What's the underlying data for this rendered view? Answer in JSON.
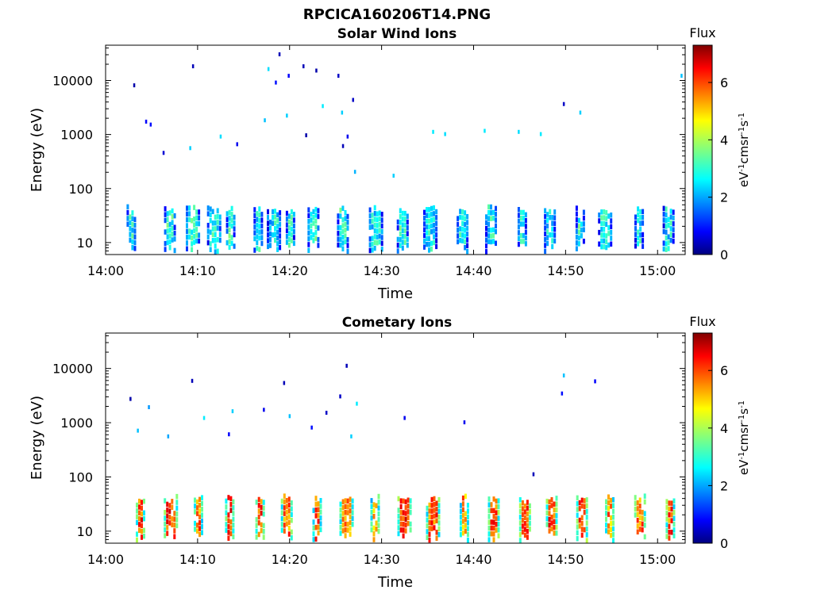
{
  "title": "RPCICA160206T14.PNG",
  "colormap": [
    "#000080",
    "#0000ff",
    "#0080ff",
    "#00ffff",
    "#80ff80",
    "#ffff00",
    "#ff8000",
    "#ff0000",
    "#800000"
  ],
  "chart_data": [
    {
      "type": "heatmap",
      "title": "Solar Wind Ions",
      "xlabel": "Time",
      "ylabel": "Energy (eV)",
      "y_scale": "log",
      "xlim": [
        "14:00",
        "15:03"
      ],
      "ylim": [
        6,
        45000
      ],
      "x_ticks": [
        "14:00",
        "14:10",
        "14:20",
        "14:30",
        "14:40",
        "14:50",
        "15:00"
      ],
      "y_ticks": [
        "10",
        "100",
        "1000",
        "10000"
      ],
      "colorbar": {
        "label": "Flux",
        "unit": "eV-1cm-2sr-1s-1",
        "range": [
          0,
          7.3
        ],
        "ticks": [
          "0",
          "2",
          "4",
          "6"
        ]
      },
      "clusters": [
        {
          "t": 2.8,
          "level": 2.8
        },
        {
          "t": 7.0,
          "level": 2.9
        },
        {
          "t": 9.5,
          "level": 2.9
        },
        {
          "t": 11.8,
          "level": 2.8
        },
        {
          "t": 13.6,
          "level": 3.0
        },
        {
          "t": 16.6,
          "level": 2.8
        },
        {
          "t": 18.3,
          "level": 2.6
        },
        {
          "t": 20.1,
          "level": 2.8
        },
        {
          "t": 22.6,
          "level": 2.9
        },
        {
          "t": 25.8,
          "level": 2.9
        },
        {
          "t": 29.4,
          "level": 2.7
        },
        {
          "t": 32.3,
          "level": 2.9
        },
        {
          "t": 35.3,
          "level": 2.7
        },
        {
          "t": 38.8,
          "level": 2.6
        },
        {
          "t": 41.9,
          "level": 2.8
        },
        {
          "t": 45.3,
          "level": 2.7
        },
        {
          "t": 48.3,
          "level": 2.7
        },
        {
          "t": 51.6,
          "level": 2.9
        },
        {
          "t": 54.3,
          "level": 2.8
        },
        {
          "t": 58.0,
          "level": 2.7
        },
        {
          "t": 61.2,
          "level": 2.6
        }
      ],
      "sparse_points": [
        {
          "t": 3.0,
          "e": 8000,
          "level": 0.3
        },
        {
          "t": 4.3,
          "e": 1700,
          "level": 0.9
        },
        {
          "t": 4.8,
          "e": 1500,
          "level": 1.0
        },
        {
          "t": 6.2,
          "e": 450,
          "level": 0.6
        },
        {
          "t": 9.4,
          "e": 18000,
          "level": 0.4
        },
        {
          "t": 9.1,
          "e": 550,
          "level": 2.4
        },
        {
          "t": 12.4,
          "e": 900,
          "level": 2.5
        },
        {
          "t": 14.2,
          "e": 650,
          "level": 0.8
        },
        {
          "t": 17.2,
          "e": 1800,
          "level": 2.3
        },
        {
          "t": 17.6,
          "e": 16000,
          "level": 2.5
        },
        {
          "t": 18.4,
          "e": 9000,
          "level": 1.0
        },
        {
          "t": 18.8,
          "e": 30000,
          "level": 0.4
        },
        {
          "t": 19.6,
          "e": 2200,
          "level": 2.4
        },
        {
          "t": 19.8,
          "e": 12000,
          "level": 0.9
        },
        {
          "t": 21.4,
          "e": 18000,
          "level": 0.4
        },
        {
          "t": 21.7,
          "e": 950,
          "level": 0.3
        },
        {
          "t": 22.8,
          "e": 15000,
          "level": 0.3
        },
        {
          "t": 23.5,
          "e": 3300,
          "level": 2.6
        },
        {
          "t": 25.2,
          "e": 12000,
          "level": 0.5
        },
        {
          "t": 25.6,
          "e": 2500,
          "level": 2.4
        },
        {
          "t": 25.7,
          "e": 600,
          "level": 0.4
        },
        {
          "t": 26.2,
          "e": 900,
          "level": 0.8
        },
        {
          "t": 26.8,
          "e": 4300,
          "level": 0.5
        },
        {
          "t": 27.0,
          "e": 200,
          "level": 2.2
        },
        {
          "t": 31.2,
          "e": 170,
          "level": 2.4
        },
        {
          "t": 35.5,
          "e": 1100,
          "level": 2.6
        },
        {
          "t": 36.8,
          "e": 1000,
          "level": 2.5
        },
        {
          "t": 41.1,
          "e": 1150,
          "level": 2.6
        },
        {
          "t": 44.8,
          "e": 1100,
          "level": 2.5
        },
        {
          "t": 47.2,
          "e": 1000,
          "level": 2.6
        },
        {
          "t": 49.7,
          "e": 3600,
          "level": 0.5
        },
        {
          "t": 51.5,
          "e": 2500,
          "level": 2.4
        },
        {
          "t": 62.5,
          "e": 12000,
          "level": 2.3
        }
      ]
    },
    {
      "type": "heatmap",
      "title": "Cometary Ions",
      "xlabel": "Time",
      "ylabel": "Energy (eV)",
      "y_scale": "log",
      "xlim": [
        "14:00",
        "15:03"
      ],
      "ylim": [
        6,
        45000
      ],
      "x_ticks": [
        "14:00",
        "14:10",
        "14:20",
        "14:30",
        "14:40",
        "14:50",
        "15:00"
      ],
      "y_ticks": [
        "10",
        "100",
        "1000",
        "10000"
      ],
      "colorbar": {
        "label": "Flux",
        "unit": "eV-1cm-2sr-1s-1",
        "range": [
          0,
          7.3
        ],
        "ticks": [
          "0",
          "2",
          "4",
          "6"
        ]
      },
      "clusters": [
        {
          "t": 3.8,
          "level": 5.9
        },
        {
          "t": 7.1,
          "level": 6.0
        },
        {
          "t": 10.1,
          "level": 5.5
        },
        {
          "t": 13.5,
          "level": 6.2
        },
        {
          "t": 16.8,
          "level": 6.0
        },
        {
          "t": 19.7,
          "level": 5.6
        },
        {
          "t": 23.0,
          "level": 5.7
        },
        {
          "t": 26.2,
          "level": 5.4
        },
        {
          "t": 29.3,
          "level": 5.2
        },
        {
          "t": 32.5,
          "level": 6.0
        },
        {
          "t": 35.6,
          "level": 5.7
        },
        {
          "t": 39.0,
          "level": 5.3
        },
        {
          "t": 42.2,
          "level": 5.9
        },
        {
          "t": 45.6,
          "level": 6.0
        },
        {
          "t": 48.5,
          "level": 5.8
        },
        {
          "t": 51.8,
          "level": 6.0
        },
        {
          "t": 54.8,
          "level": 5.4
        },
        {
          "t": 58.1,
          "level": 5.5
        },
        {
          "t": 61.4,
          "level": 5.8
        }
      ],
      "sparse_points": [
        {
          "t": 2.6,
          "e": 2700,
          "level": 0.3
        },
        {
          "t": 3.4,
          "e": 700,
          "level": 2.3
        },
        {
          "t": 4.6,
          "e": 1900,
          "level": 2.0
        },
        {
          "t": 6.7,
          "e": 550,
          "level": 2.1
        },
        {
          "t": 9.3,
          "e": 5800,
          "level": 0.4
        },
        {
          "t": 10.6,
          "e": 1200,
          "level": 2.6
        },
        {
          "t": 13.7,
          "e": 1600,
          "level": 2.4
        },
        {
          "t": 13.3,
          "e": 600,
          "level": 0.9
        },
        {
          "t": 17.1,
          "e": 1700,
          "level": 0.8
        },
        {
          "t": 19.3,
          "e": 5300,
          "level": 0.4
        },
        {
          "t": 19.9,
          "e": 1300,
          "level": 2.3
        },
        {
          "t": 22.3,
          "e": 800,
          "level": 1.0
        },
        {
          "t": 23.9,
          "e": 1500,
          "level": 0.5
        },
        {
          "t": 25.4,
          "e": 3000,
          "level": 0.5
        },
        {
          "t": 26.1,
          "e": 11000,
          "level": 0.4
        },
        {
          "t": 26.6,
          "e": 550,
          "level": 2.4
        },
        {
          "t": 27.2,
          "e": 2200,
          "level": 2.6
        },
        {
          "t": 32.4,
          "e": 1200,
          "level": 0.8
        },
        {
          "t": 38.9,
          "e": 1000,
          "level": 0.8
        },
        {
          "t": 46.4,
          "e": 110,
          "level": 0.4
        },
        {
          "t": 49.7,
          "e": 7300,
          "level": 2.3
        },
        {
          "t": 49.5,
          "e": 3400,
          "level": 1.0
        },
        {
          "t": 53.1,
          "e": 5700,
          "level": 0.9
        }
      ]
    }
  ]
}
